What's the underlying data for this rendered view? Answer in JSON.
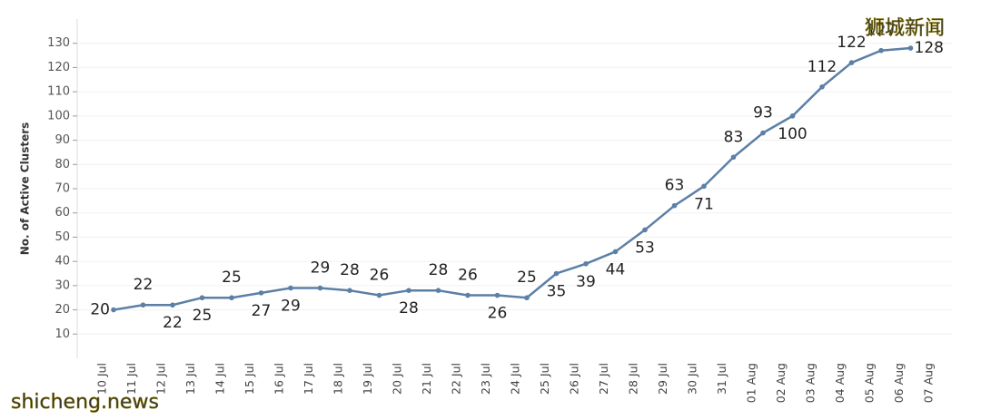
{
  "chart_data": {
    "type": "line",
    "y_label": "No. of Active Clusters",
    "categories": [
      "10 Jul",
      "11 Jul",
      "12 Jul",
      "13 Jul",
      "14 Jul",
      "15 Jul",
      "16 Jul",
      "17 Jul",
      "18 Jul",
      "19 Jul",
      "20 Jul",
      "21 Jul",
      "22 Jul",
      "23 Jul",
      "24 Jul",
      "25 Jul",
      "26 Jul",
      "27 Jul",
      "28 Jul",
      "29 Jul",
      "30 Jul",
      "31 Jul",
      "01 Aug",
      "02 Aug",
      "03 Aug",
      "04 Aug",
      "05 Aug",
      "06 Aug",
      "07 Aug"
    ],
    "values": [
      20,
      22,
      22,
      25,
      25,
      27,
      29,
      29,
      28,
      26,
      28,
      28,
      26,
      26,
      25,
      35,
      39,
      44,
      53,
      63,
      71,
      83,
      93,
      100,
      112,
      122,
      127,
      128,
      null
    ],
    "color": "#5b7fa6",
    "ylim": [
      0,
      140
    ],
    "yticks": [
      10,
      20,
      30,
      40,
      50,
      60,
      70,
      80,
      90,
      100,
      110,
      120,
      130
    ],
    "grid": true,
    "watermarks": [
      "狮城新闻",
      "shicheng.news"
    ]
  }
}
